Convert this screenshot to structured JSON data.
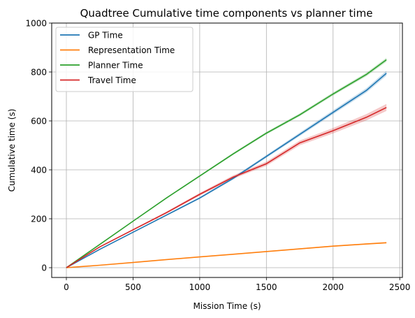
{
  "chart_data": {
    "type": "line",
    "title": "Quadtree Cumulative time components vs planner time",
    "xlabel": "Mission Time (s)",
    "ylabel": "Cumulative time (s)",
    "xlim": [
      -110,
      2520
    ],
    "ylim": [
      -40,
      1000
    ],
    "xticks": [
      0,
      500,
      1000,
      1500,
      2000,
      2500
    ],
    "yticks": [
      0,
      200,
      400,
      600,
      800,
      1000
    ],
    "grid": true,
    "legend_position": "top-left",
    "series": [
      {
        "name": "GP Time",
        "color": "#1f77b4",
        "x": [
          0,
          250,
          500,
          750,
          1000,
          1250,
          1500,
          1750,
          2000,
          2250,
          2400
        ],
        "y": [
          0,
          75,
          145,
          215,
          285,
          365,
          455,
          545,
          635,
          725,
          795
        ],
        "band": 10
      },
      {
        "name": "Representation Time",
        "color": "#ff7f0e",
        "x": [
          0,
          250,
          500,
          750,
          1000,
          1250,
          1500,
          1750,
          2000,
          2250,
          2400
        ],
        "y": [
          0,
          10,
          21,
          33,
          44,
          55,
          66,
          77,
          88,
          97,
          102
        ],
        "band": 3
      },
      {
        "name": "Planner Time",
        "color": "#2ca02c",
        "x": [
          0,
          250,
          500,
          750,
          1000,
          1250,
          1500,
          1750,
          2000,
          2250,
          2400
        ],
        "y": [
          0,
          95,
          190,
          285,
          375,
          465,
          550,
          625,
          710,
          790,
          850
        ],
        "band": 8
      },
      {
        "name": "Travel Time",
        "color": "#d62728",
        "x": [
          0,
          250,
          500,
          750,
          1000,
          1250,
          1500,
          1750,
          2000,
          2250,
          2400
        ],
        "y": [
          0,
          85,
          155,
          225,
          300,
          370,
          425,
          510,
          560,
          615,
          655
        ],
        "band": 14
      }
    ]
  }
}
